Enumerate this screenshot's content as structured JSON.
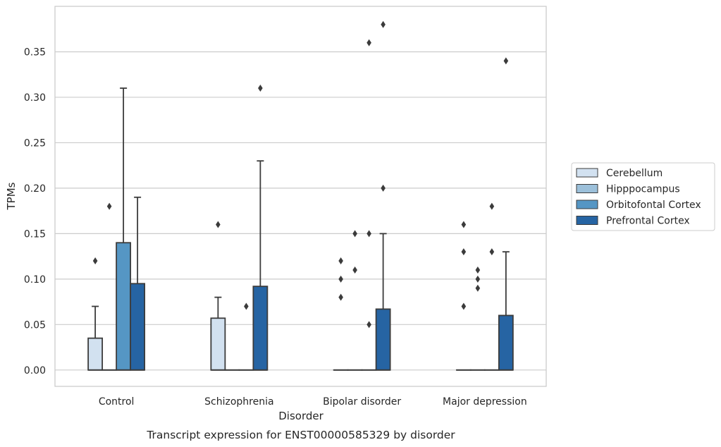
{
  "caption": "Transcript expression for ENST00000585329 by disorder",
  "chart_data": {
    "type": "box",
    "xlabel": "Disorder",
    "ylabel": "TPMs",
    "ylim": [
      -0.018,
      0.4
    ],
    "yticks": [
      0.0,
      0.05,
      0.1,
      0.15,
      0.2,
      0.25,
      0.3,
      0.35
    ],
    "ytick_labels": [
      "0.00",
      "0.05",
      "0.10",
      "0.15",
      "0.20",
      "0.25",
      "0.30",
      "0.35"
    ],
    "grid": "y",
    "legend_position": "right",
    "categories": [
      "Control",
      "Schizophrenia",
      "Bipolar disorder",
      "Major depression"
    ],
    "series": [
      {
        "name": "Cerebellum",
        "color": "#d2e1f0",
        "boxes": [
          {
            "q1": 0.0,
            "median": 0.0,
            "q3": 0.035,
            "whisker_low": 0.0,
            "whisker_high": 0.07,
            "outliers": [
              0.12
            ]
          },
          {
            "q1": 0.0,
            "median": 0.0,
            "q3": 0.057,
            "whisker_low": 0.0,
            "whisker_high": 0.08,
            "outliers": [
              0.16
            ]
          },
          {
            "q1": 0.0,
            "median": 0.0,
            "q3": 0.0,
            "whisker_low": 0.0,
            "whisker_high": 0.0,
            "outliers": [
              0.08,
              0.1,
              0.12
            ]
          },
          {
            "q1": 0.0,
            "median": 0.0,
            "q3": 0.0,
            "whisker_low": 0.0,
            "whisker_high": 0.0,
            "outliers": [
              0.07,
              0.13,
              0.16
            ]
          }
        ]
      },
      {
        "name": "Hipppocampus",
        "color": "#9cc0da",
        "boxes": [
          {
            "q1": 0.0,
            "median": 0.0,
            "q3": 0.0,
            "whisker_low": 0.0,
            "whisker_high": 0.0,
            "outliers": [
              0.18
            ]
          },
          {
            "q1": 0.0,
            "median": 0.0,
            "q3": 0.0,
            "whisker_low": 0.0,
            "whisker_high": 0.0,
            "outliers": []
          },
          {
            "q1": 0.0,
            "median": 0.0,
            "q3": 0.0,
            "whisker_low": 0.0,
            "whisker_high": 0.0,
            "outliers": [
              0.11,
              0.15
            ]
          },
          {
            "q1": 0.0,
            "median": 0.0,
            "q3": 0.0,
            "whisker_low": 0.0,
            "whisker_high": 0.0,
            "outliers": [
              0.09,
              0.1,
              0.11
            ]
          }
        ]
      },
      {
        "name": "Orbitofontal Cortex",
        "color": "#5596c4",
        "boxes": [
          {
            "q1": 0.0,
            "median": 0.0,
            "q3": 0.14,
            "whisker_low": 0.0,
            "whisker_high": 0.31,
            "outliers": []
          },
          {
            "q1": 0.0,
            "median": 0.0,
            "q3": 0.0,
            "whisker_low": 0.0,
            "whisker_high": 0.0,
            "outliers": [
              0.07
            ]
          },
          {
            "q1": 0.0,
            "median": 0.0,
            "q3": 0.0,
            "whisker_low": 0.0,
            "whisker_high": 0.0,
            "outliers": [
              0.05,
              0.15,
              0.36
            ]
          },
          {
            "q1": 0.0,
            "median": 0.0,
            "q3": 0.0,
            "whisker_low": 0.0,
            "whisker_high": 0.0,
            "outliers": [
              0.13,
              0.18
            ]
          }
        ]
      },
      {
        "name": "Prefrontal Cortex",
        "color": "#2664a3",
        "boxes": [
          {
            "q1": 0.0,
            "median": 0.0,
            "q3": 0.095,
            "whisker_low": 0.0,
            "whisker_high": 0.19,
            "outliers": []
          },
          {
            "q1": 0.0,
            "median": 0.0,
            "q3": 0.092,
            "whisker_low": 0.0,
            "whisker_high": 0.23,
            "outliers": [
              0.31
            ]
          },
          {
            "q1": 0.0,
            "median": 0.0,
            "q3": 0.067,
            "whisker_low": 0.0,
            "whisker_high": 0.15,
            "outliers": [
              0.2,
              0.38
            ]
          },
          {
            "q1": 0.0,
            "median": 0.0,
            "q3": 0.06,
            "whisker_low": 0.0,
            "whisker_high": 0.13,
            "outliers": [
              0.34
            ]
          }
        ]
      }
    ]
  }
}
